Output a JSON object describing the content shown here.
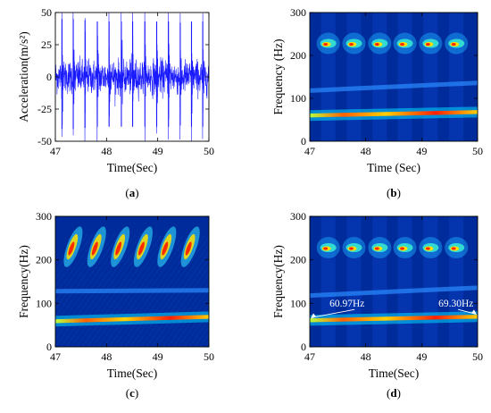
{
  "chart_data": [
    {
      "panel": "a",
      "caption": "a",
      "type": "line",
      "title": "",
      "xlabel": "Time(Sec)",
      "ylabel": "Acceleration(m/s²)",
      "xlim": [
        47,
        50
      ],
      "ylim": [
        -50,
        50
      ],
      "xticks": [
        47,
        48,
        49,
        50
      ],
      "yticks": [
        -50,
        -25,
        0,
        25,
        50
      ],
      "grid": false,
      "line_color": "#1a1aff",
      "noise_amplitude": 12,
      "impulse_times": [
        47.13,
        47.35,
        47.58,
        47.82,
        48.05,
        48.29,
        48.51,
        48.75,
        48.98,
        49.21,
        49.44,
        49.66,
        49.88
      ],
      "impulse_peaks": [
        45,
        45,
        44,
        43,
        43,
        43,
        43,
        43,
        43,
        43,
        42,
        43,
        43
      ]
    },
    {
      "panel": "b",
      "caption": "b",
      "type": "heatmap",
      "title": "",
      "xlabel": "Time (Sec)",
      "ylabel": "Frequency (Hz)",
      "xlim": [
        47,
        50
      ],
      "ylim": [
        0,
        300
      ],
      "xticks": [
        47,
        48,
        49,
        50
      ],
      "yticks": [
        0,
        100,
        200,
        300
      ],
      "background_color": "#002b9a",
      "horizontal_bands": [
        {
          "freq_start": 60,
          "freq_end": 68,
          "intensity": 1.0
        },
        {
          "freq_start": 118,
          "freq_end": 136,
          "intensity": 0.3
        }
      ],
      "burst_freq": 228,
      "burst_times": [
        47.33,
        47.79,
        48.25,
        48.7,
        49.16,
        49.62
      ]
    },
    {
      "panel": "c",
      "caption": "c",
      "type": "heatmap",
      "title": "",
      "xlabel": "Time(Sec)",
      "ylabel": "Frequency(Hz)",
      "xlim": [
        47,
        50
      ],
      "ylim": [
        0,
        300
      ],
      "xticks": [
        47,
        48,
        49,
        50
      ],
      "yticks": [
        0,
        100,
        200,
        300
      ],
      "background_color": "#002b9a",
      "horizontal_bands": [
        {
          "freq_start": 59,
          "freq_end": 69,
          "intensity": 0.85
        },
        {
          "freq_start": 128,
          "freq_end": 130,
          "intensity": 0.25
        }
      ],
      "burst_freq": 230,
      "burst_times": [
        47.33,
        47.79,
        48.25,
        48.7,
        49.16,
        49.62
      ]
    },
    {
      "panel": "d",
      "caption": "d",
      "type": "heatmap",
      "title": "",
      "xlabel": "Time(Sec)",
      "ylabel": "Frequency(Hz)",
      "xlim": [
        47,
        50
      ],
      "ylim": [
        0,
        300
      ],
      "xticks": [
        47,
        48,
        49,
        50
      ],
      "yticks": [
        0,
        100,
        200,
        300
      ],
      "background_color": "#002b9a",
      "horizontal_bands": [
        {
          "freq_start": 60.97,
          "freq_end": 69.3,
          "intensity": 1.0
        },
        {
          "freq_start": 118,
          "freq_end": 136,
          "intensity": 0.3
        }
      ],
      "burst_freq": 228,
      "burst_times": [
        47.33,
        47.79,
        48.25,
        48.7,
        49.16,
        49.62
      ],
      "annotations": [
        {
          "text": "60.97Hz",
          "x": 47.0,
          "y": 60.97,
          "label_x": 47.8,
          "label_y": 92
        },
        {
          "text": "69.30Hz",
          "x": 50.0,
          "y": 69.3,
          "label_x": 49.65,
          "label_y": 92
        }
      ]
    }
  ]
}
